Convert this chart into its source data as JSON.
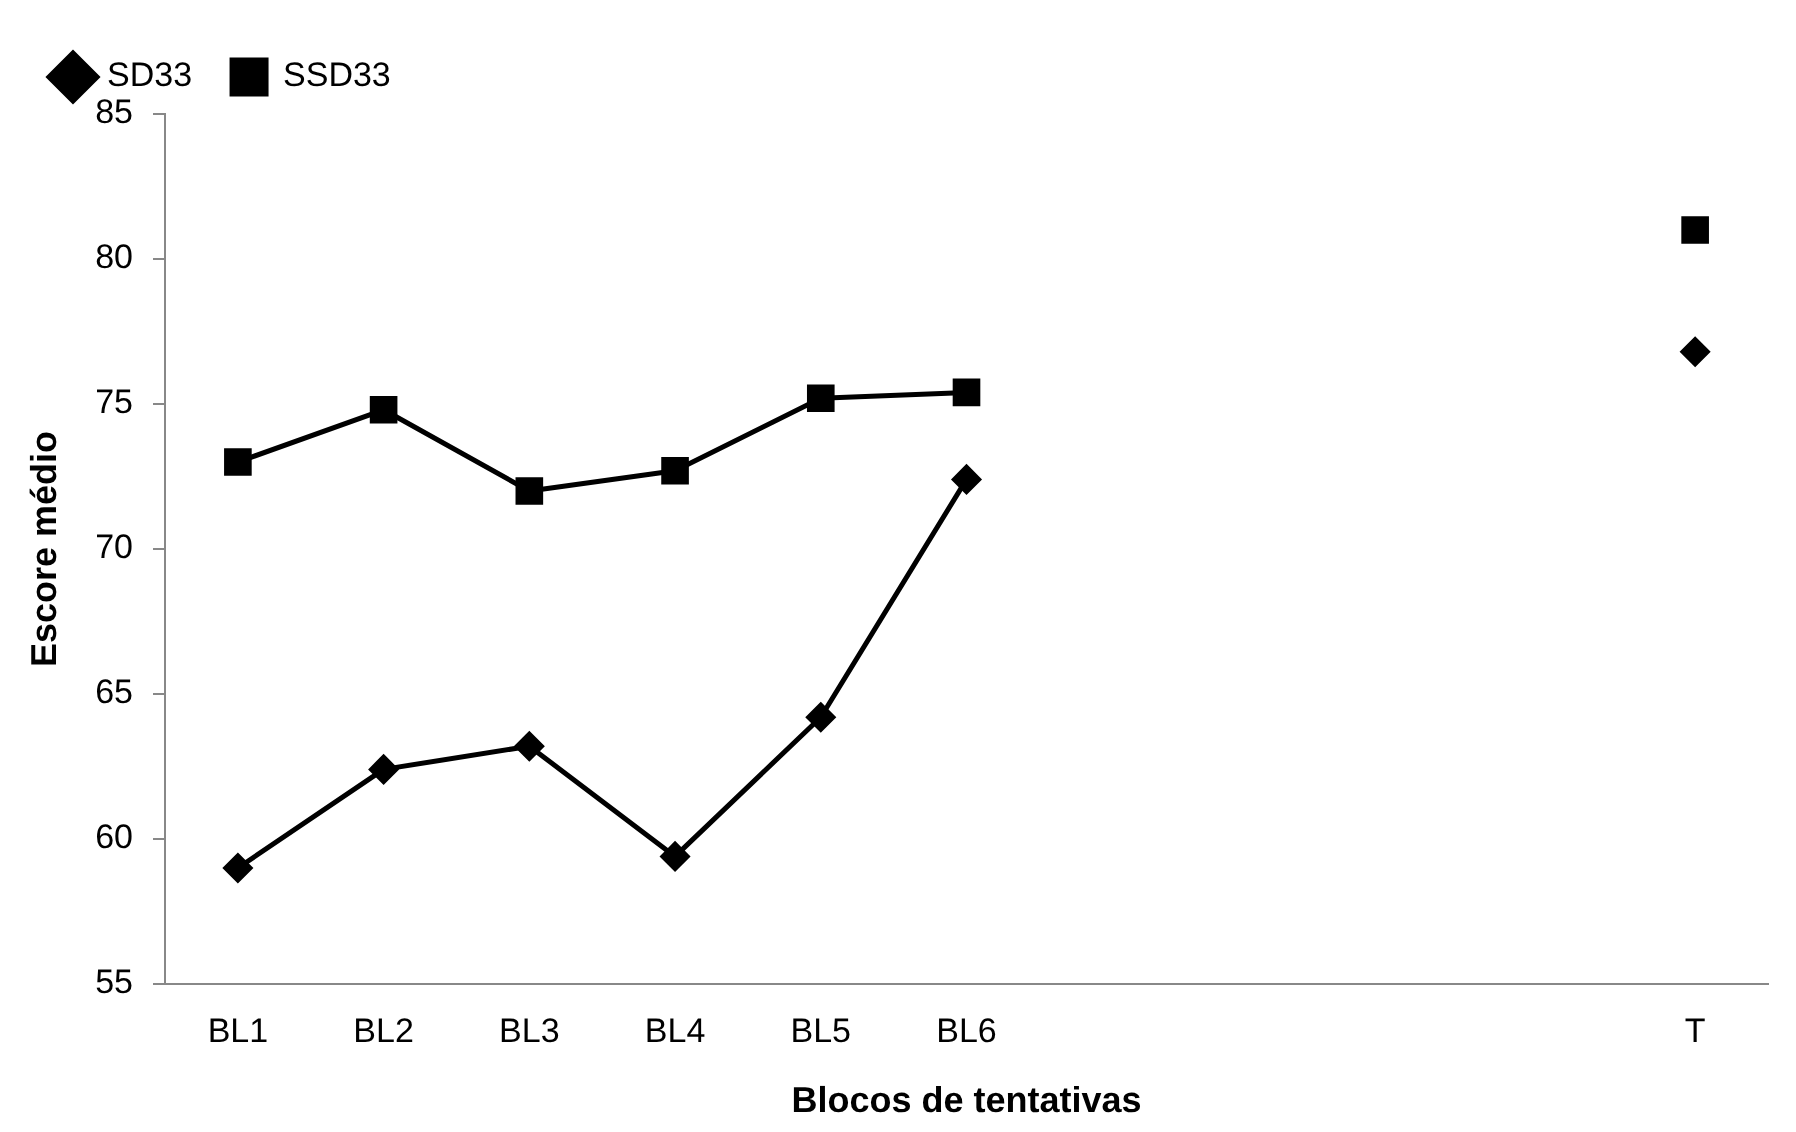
{
  "chart_data": {
    "type": "line",
    "xlabel": "Blocos de tentativas",
    "ylabel": "Escore médio",
    "categories": [
      "BL1",
      "BL2",
      "BL3",
      "BL4",
      "BL5",
      "BL6",
      null,
      null,
      null,
      null,
      "T"
    ],
    "series": [
      {
        "name": "SD33",
        "color": "#000000",
        "marker": "diamond",
        "values": [
          59.0,
          62.4,
          63.2,
          59.4,
          64.2,
          72.4,
          null,
          null,
          null,
          null,
          76.8
        ]
      },
      {
        "name": "SSD33",
        "color": "#000000",
        "marker": "square",
        "values": [
          73.0,
          74.8,
          72.0,
          72.7,
          75.2,
          75.4,
          null,
          null,
          null,
          null,
          81.0
        ]
      }
    ],
    "ylim": [
      55,
      85
    ],
    "yticks": [
      55,
      60,
      65,
      70,
      75,
      80,
      85
    ],
    "grid": false,
    "legend": "top left",
    "line_style": "solid"
  }
}
